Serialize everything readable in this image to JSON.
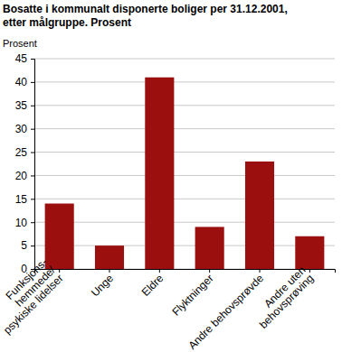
{
  "chart_data": {
    "type": "bar",
    "title": "Bosatte i kommunalt disponerte boliger per 31.12.2001,\netter målgruppe. Prosent",
    "y_label": "Prosent",
    "categories": [
      "Funksjons-\nhemmede/\npsykiske lidelser",
      "Unge",
      "Eldre",
      "Flyktninger",
      "Andre behovsprøvde",
      "Andre uten\nbehovsprøving"
    ],
    "values": [
      14,
      5,
      41,
      9,
      23,
      7
    ],
    "color": "#9b0f0f",
    "ylim": [
      0,
      45
    ],
    "yticks": [
      0,
      5,
      10,
      15,
      20,
      25,
      30,
      35,
      40,
      45
    ],
    "grid": true
  }
}
